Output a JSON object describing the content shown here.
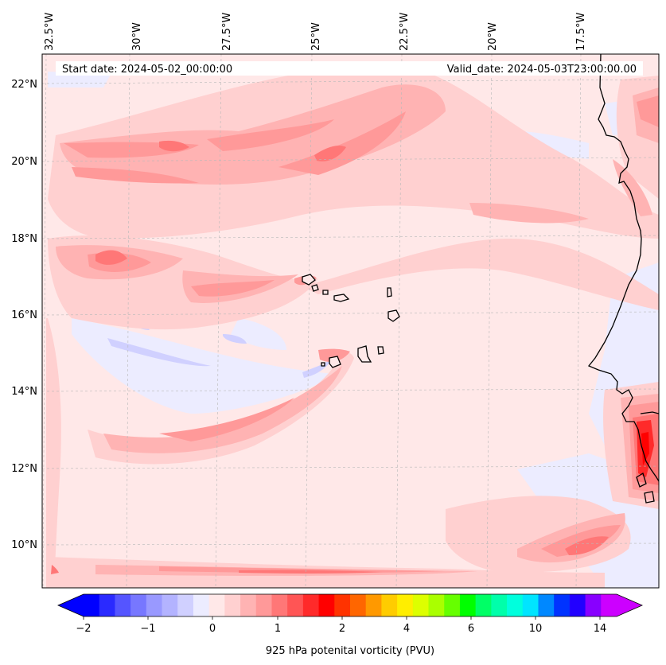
{
  "map": {
    "start_date": "Start date: 2024-05-02_00:00:00",
    "valid_date": "Valid_date: 2024-05-03T23:00:00.00",
    "lon_labels": [
      "32.5°W",
      "30°W",
      "27.5°W",
      "25°W",
      "22.5°W",
      "20°W",
      "17.5°W"
    ],
    "lat_labels": [
      "22°N",
      "20°N",
      "18°N",
      "16°N",
      "14°N",
      "12°N",
      "10°N"
    ],
    "background_color": "#ffe8e8"
  },
  "colorbar": {
    "label": "925 hPa potenital vorticity (PVU)",
    "tick_labels": [
      "−2",
      "−1",
      "0",
      "1",
      "2",
      "4",
      "6",
      "10",
      "14"
    ],
    "levels": [
      -2,
      -1,
      0,
      1,
      2,
      4,
      6,
      10,
      14,
      16
    ],
    "colors": [
      "#0000ff",
      "#2a2aff",
      "#5555ff",
      "#7777ff",
      "#9999ff",
      "#b3b3ff",
      "#d0d0ff",
      "#ececff",
      "#ffe8e8",
      "#ffd0d0",
      "#ffb3b3",
      "#ff9999",
      "#ff7777",
      "#ff5555",
      "#ff2a2a",
      "#ff0000",
      "#ff3300",
      "#ff6600",
      "#ff9900",
      "#ffcc00",
      "#ffee00",
      "#ddff00",
      "#aaff00",
      "#66ff00",
      "#00ff00",
      "#00ff66",
      "#00ffaa",
      "#00ffdd",
      "#00e5ff",
      "#0088ff",
      "#0033ff",
      "#2200ff",
      "#8800ff",
      "#cc00ff"
    ],
    "extend_low_color": "#0000ff",
    "extend_high_color": "#cc00ff"
  }
}
